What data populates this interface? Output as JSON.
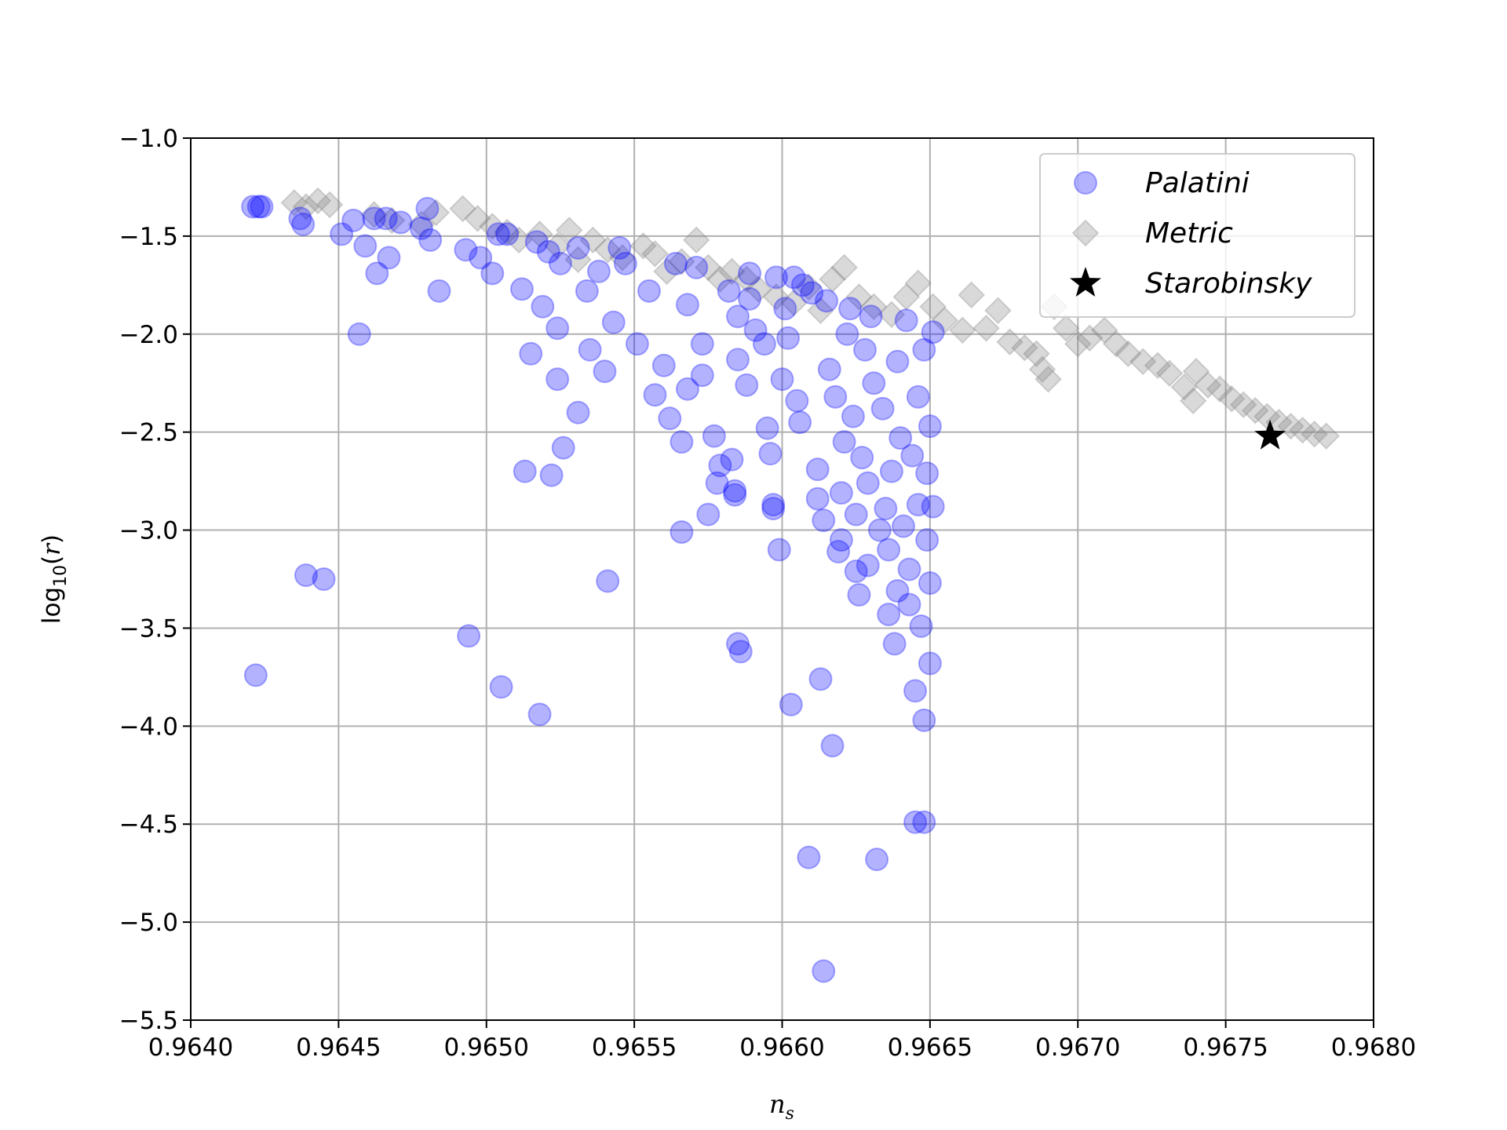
{
  "chart_data": {
    "type": "scatter",
    "xlabel": "n_s",
    "ylabel": "log10(r)",
    "xlim": [
      0.964,
      0.968
    ],
    "ylim": [
      -5.5,
      -1.0
    ],
    "xticks": [
      0.964,
      0.9645,
      0.965,
      0.9655,
      0.966,
      0.9665,
      0.967,
      0.9675,
      0.968
    ],
    "xtick_labels": [
      "0.9640",
      "0.9645",
      "0.9650",
      "0.9655",
      "0.9660",
      "0.9665",
      "0.9670",
      "0.9675",
      "0.9680"
    ],
    "yticks": [
      -5.5,
      -5.0,
      -4.5,
      -4.0,
      -3.5,
      -3.0,
      -2.5,
      -2.0,
      -1.5,
      -1.0
    ],
    "ytick_labels": [
      "−5.5",
      "−5.0",
      "−4.5",
      "−4.0",
      "−3.5",
      "−3.0",
      "−2.5",
      "−2.0",
      "−1.5",
      "−1.0"
    ],
    "grid": true,
    "legend_position": "top-right",
    "series": [
      {
        "name": "Palatini",
        "marker": "circle",
        "color": "#0000ff",
        "points": [
          [
            0.96421,
            -1.35
          ],
          [
            0.96423,
            -1.35
          ],
          [
            0.96424,
            -1.35
          ],
          [
            0.96422,
            -3.74
          ],
          [
            0.96437,
            -1.41
          ],
          [
            0.96438,
            -1.44
          ],
          [
            0.96439,
            -3.23
          ],
          [
            0.96445,
            -3.25
          ],
          [
            0.96451,
            -1.49
          ],
          [
            0.96455,
            -1.42
          ],
          [
            0.96457,
            -2.0
          ],
          [
            0.96459,
            -1.55
          ],
          [
            0.96462,
            -1.41
          ],
          [
            0.96463,
            -1.69
          ],
          [
            0.96466,
            -1.41
          ],
          [
            0.96467,
            -1.61
          ],
          [
            0.96471,
            -1.43
          ],
          [
            0.96478,
            -1.46
          ],
          [
            0.9648,
            -1.36
          ],
          [
            0.96481,
            -1.52
          ],
          [
            0.96484,
            -1.78
          ],
          [
            0.96493,
            -1.57
          ],
          [
            0.96494,
            -3.54
          ],
          [
            0.96498,
            -1.61
          ],
          [
            0.96502,
            -1.69
          ],
          [
            0.96504,
            -1.49
          ],
          [
            0.96507,
            -1.49
          ],
          [
            0.96505,
            -3.8
          ],
          [
            0.96512,
            -1.77
          ],
          [
            0.96513,
            -2.7
          ],
          [
            0.96515,
            -2.1
          ],
          [
            0.96517,
            -1.53
          ],
          [
            0.96519,
            -1.86
          ],
          [
            0.96518,
            -3.94
          ],
          [
            0.96521,
            -1.58
          ],
          [
            0.96522,
            -2.72
          ],
          [
            0.96524,
            -1.97
          ],
          [
            0.96524,
            -2.23
          ],
          [
            0.96525,
            -1.64
          ],
          [
            0.96526,
            -2.58
          ],
          [
            0.96531,
            -2.4
          ],
          [
            0.96531,
            -1.56
          ],
          [
            0.96534,
            -1.78
          ],
          [
            0.96535,
            -2.08
          ],
          [
            0.96538,
            -1.68
          ],
          [
            0.9654,
            -2.19
          ],
          [
            0.96541,
            -3.26
          ],
          [
            0.96543,
            -1.94
          ],
          [
            0.96545,
            -1.56
          ],
          [
            0.96547,
            -1.64
          ],
          [
            0.96551,
            -2.05
          ],
          [
            0.96555,
            -1.78
          ],
          [
            0.96557,
            -2.31
          ],
          [
            0.9656,
            -2.16
          ],
          [
            0.96562,
            -2.43
          ],
          [
            0.96564,
            -1.64
          ],
          [
            0.96566,
            -2.55
          ],
          [
            0.96566,
            -3.01
          ],
          [
            0.96568,
            -2.28
          ],
          [
            0.96568,
            -1.85
          ],
          [
            0.96571,
            -1.66
          ],
          [
            0.96573,
            -2.05
          ],
          [
            0.96573,
            -2.21
          ],
          [
            0.96575,
            -2.92
          ],
          [
            0.96577,
            -2.52
          ],
          [
            0.96578,
            -2.76
          ],
          [
            0.96579,
            -2.67
          ],
          [
            0.96582,
            -1.78
          ],
          [
            0.96583,
            -2.64
          ],
          [
            0.96584,
            -2.82
          ],
          [
            0.96584,
            -2.8
          ],
          [
            0.96585,
            -1.91
          ],
          [
            0.96585,
            -2.13
          ],
          [
            0.96585,
            -3.58
          ],
          [
            0.96586,
            -3.62
          ],
          [
            0.96588,
            -2.26
          ],
          [
            0.96589,
            -1.82
          ],
          [
            0.96589,
            -1.69
          ],
          [
            0.96591,
            -1.98
          ],
          [
            0.96594,
            -2.05
          ],
          [
            0.96595,
            -2.48
          ],
          [
            0.96596,
            -2.61
          ],
          [
            0.96597,
            -2.87
          ],
          [
            0.96597,
            -2.89
          ],
          [
            0.96598,
            -1.71
          ],
          [
            0.96599,
            -3.1
          ],
          [
            0.966,
            -2.23
          ],
          [
            0.96601,
            -1.87
          ],
          [
            0.96602,
            -2.02
          ],
          [
            0.96603,
            -3.89
          ],
          [
            0.96604,
            -1.71
          ],
          [
            0.96605,
            -2.34
          ],
          [
            0.96606,
            -2.45
          ],
          [
            0.96607,
            -1.75
          ],
          [
            0.96609,
            -4.67
          ],
          [
            0.9661,
            -1.79
          ],
          [
            0.96612,
            -2.84
          ],
          [
            0.96612,
            -2.69
          ],
          [
            0.96613,
            -3.76
          ],
          [
            0.96614,
            -2.95
          ],
          [
            0.96614,
            -5.25
          ],
          [
            0.96615,
            -1.83
          ],
          [
            0.96616,
            -2.18
          ],
          [
            0.96617,
            -4.1
          ],
          [
            0.96618,
            -2.32
          ],
          [
            0.96619,
            -3.11
          ],
          [
            0.9662,
            -2.81
          ],
          [
            0.9662,
            -3.05
          ],
          [
            0.96621,
            -2.55
          ],
          [
            0.96622,
            -2.0
          ],
          [
            0.96623,
            -1.87
          ],
          [
            0.96624,
            -2.42
          ],
          [
            0.96625,
            -3.21
          ],
          [
            0.96625,
            -2.92
          ],
          [
            0.96626,
            -3.33
          ],
          [
            0.96627,
            -2.63
          ],
          [
            0.96628,
            -2.08
          ],
          [
            0.96629,
            -2.76
          ],
          [
            0.96629,
            -3.18
          ],
          [
            0.9663,
            -1.91
          ],
          [
            0.96631,
            -2.25
          ],
          [
            0.96632,
            -4.68
          ],
          [
            0.96633,
            -3.0
          ],
          [
            0.96634,
            -2.38
          ],
          [
            0.96635,
            -2.89
          ],
          [
            0.96636,
            -3.43
          ],
          [
            0.96636,
            -3.1
          ],
          [
            0.96637,
            -2.7
          ],
          [
            0.96638,
            -3.58
          ],
          [
            0.96639,
            -2.14
          ],
          [
            0.96639,
            -3.31
          ],
          [
            0.9664,
            -2.53
          ],
          [
            0.96641,
            -2.98
          ],
          [
            0.96642,
            -1.93
          ],
          [
            0.96643,
            -3.38
          ],
          [
            0.96643,
            -3.2
          ],
          [
            0.96644,
            -2.62
          ],
          [
            0.96645,
            -3.82
          ],
          [
            0.96645,
            -4.49
          ],
          [
            0.96646,
            -2.32
          ],
          [
            0.96646,
            -2.87
          ],
          [
            0.96647,
            -3.49
          ],
          [
            0.96648,
            -2.08
          ],
          [
            0.96648,
            -3.97
          ],
          [
            0.96648,
            -4.49
          ],
          [
            0.96649,
            -3.05
          ],
          [
            0.96649,
            -2.71
          ],
          [
            0.9665,
            -3.27
          ],
          [
            0.9665,
            -2.47
          ],
          [
            0.9665,
            -3.68
          ],
          [
            0.96651,
            -1.99
          ],
          [
            0.96651,
            -2.88
          ]
        ]
      },
      {
        "name": "Metric",
        "marker": "diamond",
        "color": "#808080",
        "points": [
          [
            0.96435,
            -1.33
          ],
          [
            0.96439,
            -1.35
          ],
          [
            0.96443,
            -1.32
          ],
          [
            0.96447,
            -1.34
          ],
          [
            0.96462,
            -1.39
          ],
          [
            0.96468,
            -1.42
          ],
          [
            0.96478,
            -1.44
          ],
          [
            0.96483,
            -1.38
          ],
          [
            0.96492,
            -1.36
          ],
          [
            0.96497,
            -1.41
          ],
          [
            0.96502,
            -1.45
          ],
          [
            0.96507,
            -1.48
          ],
          [
            0.96511,
            -1.52
          ],
          [
            0.96518,
            -1.49
          ],
          [
            0.96524,
            -1.55
          ],
          [
            0.96528,
            -1.47
          ],
          [
            0.96531,
            -1.62
          ],
          [
            0.96536,
            -1.52
          ],
          [
            0.96541,
            -1.57
          ],
          [
            0.96546,
            -1.61
          ],
          [
            0.96553,
            -1.55
          ],
          [
            0.96557,
            -1.59
          ],
          [
            0.96561,
            -1.68
          ],
          [
            0.96566,
            -1.63
          ],
          [
            0.96571,
            -1.52
          ],
          [
            0.96575,
            -1.66
          ],
          [
            0.96579,
            -1.72
          ],
          [
            0.96583,
            -1.68
          ],
          [
            0.96588,
            -1.72
          ],
          [
            0.96592,
            -1.77
          ],
          [
            0.96598,
            -1.81
          ],
          [
            0.96604,
            -1.84
          ],
          [
            0.96609,
            -1.76
          ],
          [
            0.96613,
            -1.88
          ],
          [
            0.96617,
            -1.72
          ],
          [
            0.96621,
            -1.66
          ],
          [
            0.96626,
            -1.81
          ],
          [
            0.96631,
            -1.86
          ],
          [
            0.96637,
            -1.9
          ],
          [
            0.96642,
            -1.81
          ],
          [
            0.96646,
            -1.74
          ],
          [
            0.96651,
            -1.86
          ],
          [
            0.96655,
            -1.93
          ],
          [
            0.96661,
            -1.98
          ],
          [
            0.96664,
            -1.8
          ],
          [
            0.96669,
            -1.97
          ],
          [
            0.96673,
            -1.88
          ],
          [
            0.96677,
            -2.04
          ],
          [
            0.96682,
            -2.07
          ],
          [
            0.96686,
            -2.1
          ],
          [
            0.96688,
            -2.18
          ],
          [
            0.9669,
            -2.23
          ],
          [
            0.96692,
            -1.86
          ],
          [
            0.96696,
            -1.97
          ],
          [
            0.967,
            -2.05
          ],
          [
            0.96704,
            -2.02
          ],
          [
            0.96709,
            -1.98
          ],
          [
            0.96713,
            -2.05
          ],
          [
            0.96717,
            -2.1
          ],
          [
            0.96722,
            -2.14
          ],
          [
            0.96727,
            -2.16
          ],
          [
            0.96731,
            -2.2
          ],
          [
            0.96736,
            -2.27
          ],
          [
            0.96739,
            -2.34
          ],
          [
            0.9674,
            -2.19
          ],
          [
            0.96744,
            -2.26
          ],
          [
            0.96748,
            -2.28
          ],
          [
            0.96752,
            -2.33
          ],
          [
            0.96756,
            -2.36
          ],
          [
            0.9676,
            -2.39
          ],
          [
            0.96764,
            -2.42
          ],
          [
            0.96768,
            -2.45
          ],
          [
            0.96772,
            -2.47
          ],
          [
            0.96776,
            -2.49
          ],
          [
            0.9678,
            -2.51
          ],
          [
            0.96784,
            -2.52
          ]
        ]
      },
      {
        "name": "Starobinsky",
        "marker": "star",
        "color": "#000000",
        "points": [
          [
            0.96765,
            -2.52
          ]
        ]
      }
    ]
  }
}
